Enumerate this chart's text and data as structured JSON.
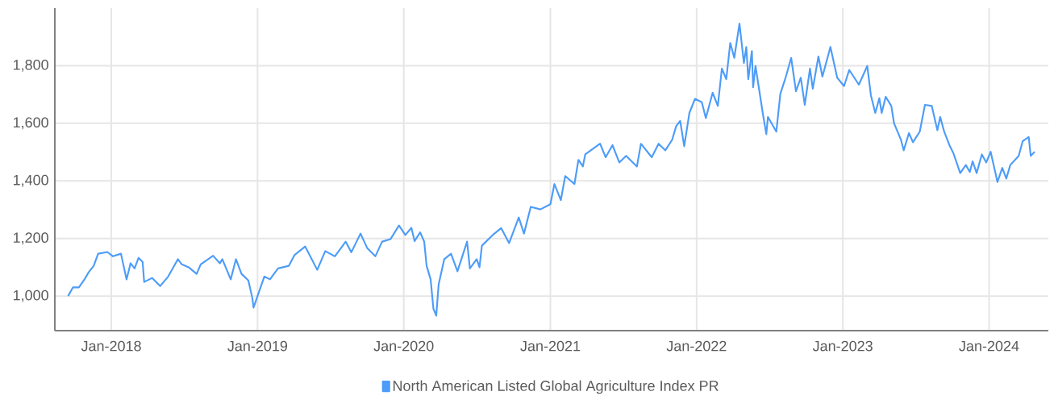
{
  "chart_data": {
    "type": "line",
    "x": [
      "2017-09-15",
      "2017-09-27",
      "2017-10-12",
      "2017-10-26",
      "2017-11-05",
      "2017-11-18",
      "2017-11-29",
      "2017-12-22",
      "2018-01-05",
      "2018-01-25",
      "2018-02-08",
      "2018-02-18",
      "2018-02-28",
      "2018-03-10",
      "2018-03-20",
      "2018-03-24",
      "2018-04-13",
      "2018-05-03",
      "2018-05-23",
      "2018-06-16",
      "2018-06-26",
      "2018-07-13",
      "2018-08-02",
      "2018-08-12",
      "2018-09-12",
      "2018-09-29",
      "2018-10-05",
      "2018-10-26",
      "2018-11-08",
      "2018-11-22",
      "2018-12-09",
      "2018-12-19",
      "2018-12-22",
      "2019-01-05",
      "2019-01-18",
      "2019-02-01",
      "2019-02-21",
      "2019-03-20",
      "2019-04-03",
      "2019-04-30",
      "2019-05-30",
      "2019-06-19",
      "2019-07-13",
      "2019-08-09",
      "2019-08-23",
      "2019-09-15",
      "2019-10-02",
      "2019-10-22",
      "2019-11-08",
      "2019-11-29",
      "2019-12-20",
      "2020-01-05",
      "2020-01-20",
      "2020-01-28",
      "2020-02-11",
      "2020-02-21",
      "2020-02-27",
      "2020-03-08",
      "2020-03-15",
      "2020-03-22",
      "2020-03-28",
      "2020-04-11",
      "2020-04-28",
      "2020-05-14",
      "2020-06-07",
      "2020-06-14",
      "2020-07-01",
      "2020-07-08",
      "2020-07-14",
      "2020-08-10",
      "2020-08-31",
      "2020-09-20",
      "2020-10-14",
      "2020-10-27",
      "2020-11-13",
      "2020-12-07",
      "2021-01-01",
      "2021-01-11",
      "2021-01-27",
      "2021-02-07",
      "2021-03-02",
      "2021-03-12",
      "2021-03-23",
      "2021-03-29",
      "2021-05-05",
      "2021-05-19",
      "2021-06-05",
      "2021-06-22",
      "2021-07-09",
      "2021-08-05",
      "2021-08-15",
      "2021-09-11",
      "2021-09-28",
      "2021-10-15",
      "2021-11-01",
      "2021-11-11",
      "2021-11-21",
      "2021-12-01",
      "2021-12-14",
      "2021-12-28",
      "2022-01-14",
      "2022-01-24",
      "2022-02-10",
      "2022-02-23",
      "2022-03-05",
      "2022-03-16",
      "2022-03-26",
      "2022-04-05",
      "2022-04-18",
      "2022-04-29",
      "2022-05-05",
      "2022-05-10",
      "2022-05-19",
      "2022-05-22",
      "2022-05-28",
      "2022-06-15",
      "2022-06-24",
      "2022-06-28",
      "2022-07-19",
      "2022-07-29",
      "2022-08-11",
      "2022-08-25",
      "2022-09-06",
      "2022-09-18",
      "2022-09-28",
      "2022-10-11",
      "2022-10-18",
      "2022-11-01",
      "2022-11-11",
      "2022-12-01",
      "2022-12-18",
      "2023-01-04",
      "2023-01-17",
      "2023-02-10",
      "2023-03-03",
      "2023-03-12",
      "2023-03-23",
      "2023-04-02",
      "2023-04-08",
      "2023-04-18",
      "2023-05-02",
      "2023-05-09",
      "2023-05-26",
      "2023-06-02",
      "2023-06-15",
      "2023-06-25",
      "2023-07-12",
      "2023-07-25",
      "2023-08-11",
      "2023-08-25",
      "2023-09-01",
      "2023-09-11",
      "2023-09-24",
      "2023-10-04",
      "2023-10-21",
      "2023-11-04",
      "2023-11-14",
      "2023-11-21",
      "2023-12-01",
      "2023-12-14",
      "2023-12-25",
      "2024-01-05",
      "2024-01-22",
      "2024-02-03",
      "2024-02-13",
      "2024-02-23",
      "2024-03-15",
      "2024-03-25",
      "2024-04-09",
      "2024-04-14",
      "2024-04-24"
    ],
    "series": [
      {
        "name": "North American Listed Global Agriculture Index PR",
        "color": "#4d9cf8",
        "values": [
          1000,
          1030,
          1030,
          1058,
          1082,
          1105,
          1147,
          1153,
          1138,
          1147,
          1058,
          1114,
          1096,
          1133,
          1119,
          1049,
          1063,
          1035,
          1068,
          1128,
          1110,
          1100,
          1077,
          1110,
          1140,
          1114,
          1128,
          1058,
          1128,
          1077,
          1054,
          993,
          960,
          1016,
          1068,
          1058,
          1096,
          1105,
          1142,
          1172,
          1091,
          1156,
          1138,
          1189,
          1152,
          1217,
          1166,
          1138,
          1189,
          1198,
          1245,
          1212,
          1237,
          1191,
          1221,
          1189,
          1105,
          1058,
          956,
          932,
          1040,
          1128,
          1147,
          1086,
          1189,
          1096,
          1128,
          1100,
          1175,
          1212,
          1236,
          1184,
          1273,
          1217,
          1310,
          1301,
          1319,
          1389,
          1333,
          1417,
          1389,
          1473,
          1450,
          1492,
          1529,
          1482,
          1524,
          1464,
          1487,
          1450,
          1529,
          1482,
          1529,
          1506,
          1543,
          1590,
          1608,
          1520,
          1636,
          1685,
          1673,
          1618,
          1706,
          1660,
          1790,
          1753,
          1879,
          1827,
          1946,
          1809,
          1865,
          1753,
          1851,
          1725,
          1799,
          1636,
          1562,
          1622,
          1571,
          1702,
          1758,
          1827,
          1711,
          1758,
          1664,
          1790,
          1720,
          1832,
          1762,
          1865,
          1758,
          1729,
          1785,
          1734,
          1799,
          1697,
          1636,
          1687,
          1636,
          1692,
          1660,
          1599,
          1543,
          1506,
          1566,
          1534,
          1571,
          1664,
          1660,
          1576,
          1622,
          1571,
          1524,
          1496,
          1427,
          1455,
          1431,
          1468,
          1427,
          1492,
          1464,
          1501,
          1396,
          1445,
          1408,
          1455,
          1487,
          1538,
          1552,
          1487,
          1501
        ]
      }
    ],
    "xlim": [
      "2017-08-13",
      "2024-05-28"
    ],
    "ylim": [
      880,
      2000
    ],
    "xticks": [
      {
        "value": "2018-01-01",
        "label": "Jan-2018"
      },
      {
        "value": "2019-01-01",
        "label": "Jan-2019"
      },
      {
        "value": "2020-01-01",
        "label": "Jan-2020"
      },
      {
        "value": "2021-01-01",
        "label": "Jan-2021"
      },
      {
        "value": "2022-01-01",
        "label": "Jan-2022"
      },
      {
        "value": "2023-01-01",
        "label": "Jan-2023"
      },
      {
        "value": "2024-01-01",
        "label": "Jan-2024"
      }
    ],
    "yticks": [
      {
        "value": 1000,
        "label": "1,000"
      },
      {
        "value": 1200,
        "label": "1,200"
      },
      {
        "value": 1400,
        "label": "1,400"
      },
      {
        "value": 1600,
        "label": "1,600"
      },
      {
        "value": 1800,
        "label": "1,800"
      }
    ],
    "grid": true,
    "legend": "bottom",
    "marker": "none",
    "line_style": "solid"
  }
}
